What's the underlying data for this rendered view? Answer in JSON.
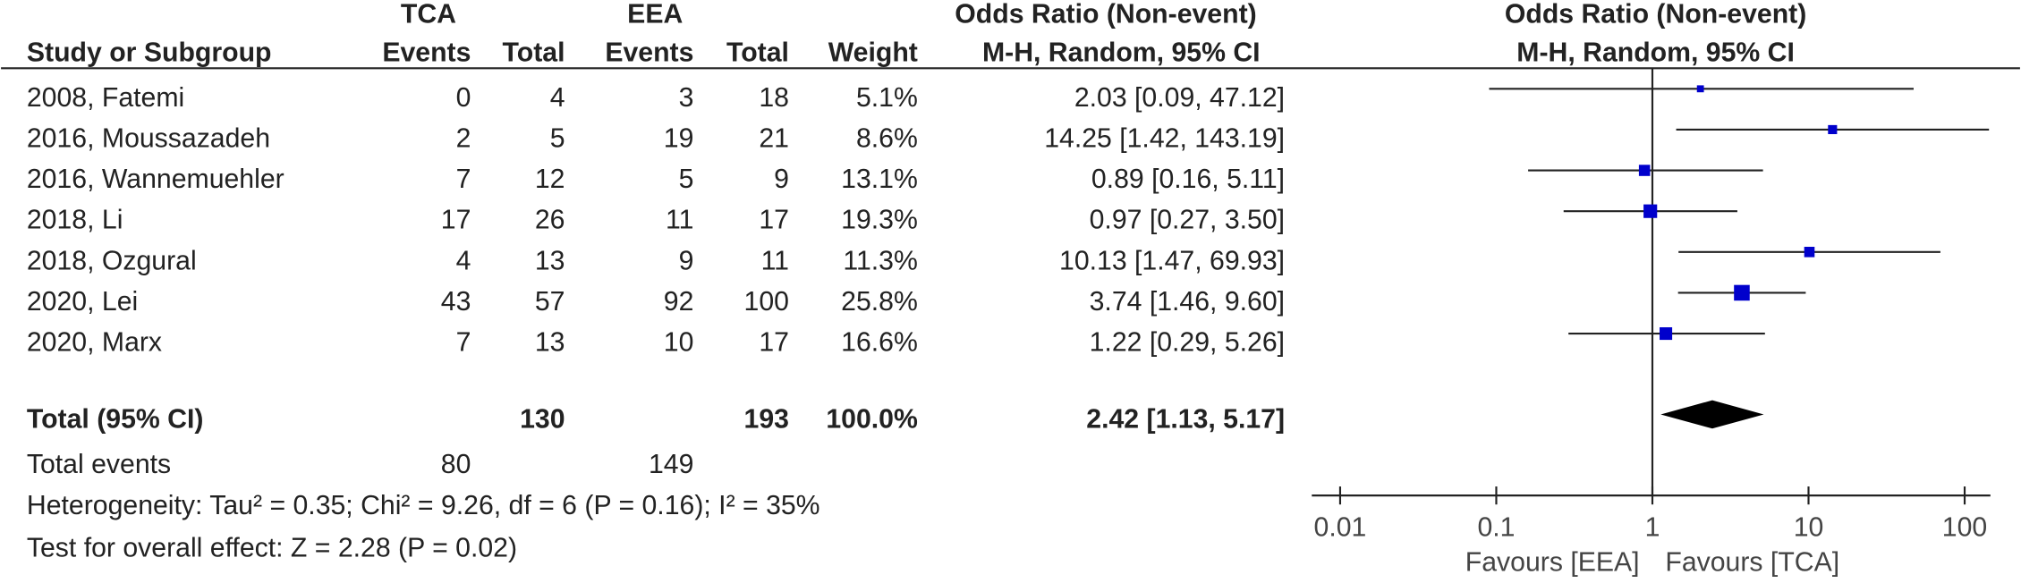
{
  "header": {
    "group1": "TCA",
    "group2": "EEA",
    "or_title": "Odds Ratio (Non-event)",
    "or_subtitle": "M-H, Random, 95% CI",
    "plot_title": "Odds Ratio (Non-event)",
    "plot_subtitle": "M-H, Random, 95% CI",
    "columns": [
      "Study or Subgroup",
      "Events",
      "Total",
      "Events",
      "Total",
      "Weight"
    ]
  },
  "table": {
    "rows": [
      [
        0,
        4,
        3,
        18
      ],
      [
        2,
        5,
        19,
        21
      ],
      [
        7,
        12,
        5,
        9
      ],
      [
        17,
        26,
        11,
        17
      ],
      [
        4,
        13,
        9,
        11
      ],
      [
        43,
        57,
        92,
        100
      ],
      [
        7,
        13,
        10,
        17
      ]
    ],
    "total": {
      "label": "Total (95% CI)",
      "tca_total": 130,
      "eea_total": 193
    },
    "total_events": {
      "label": "Total events",
      "tca": 80,
      "eea": 149
    },
    "heterogeneity": "Heterogeneity: Tau² = 0.35; Chi² = 9.26, df = 6 (P = 0.16); I² = 35%",
    "overall_effect": "Test for overall effect: Z = 2.28 (P = 0.02)"
  },
  "chart_data": {
    "type": "forest",
    "categories": [
      "2008, Fatemi",
      "2016, Moussazadeh",
      "2016, Wannemuehler",
      "2018, Li",
      "2018, Ozgural",
      "2020, Lei",
      "2020, Marx"
    ],
    "values": [
      2.03,
      14.25,
      0.89,
      0.97,
      10.13,
      3.74,
      1.22
    ],
    "ci_low": [
      0.09,
      1.42,
      0.16,
      0.27,
      1.47,
      1.46,
      0.29
    ],
    "ci_high": [
      47.12,
      143.19,
      5.11,
      3.5,
      69.93,
      9.6,
      5.26
    ],
    "value_labels": [
      "2.03 [0.09, 47.12]",
      "14.25 [1.42, 143.19]",
      "0.89 [0.16, 5.11]",
      "0.97 [0.27, 3.50]",
      "10.13 [1.47, 69.93]",
      "3.74 [1.46, 9.60]",
      "1.22 [0.29, 5.26]"
    ],
    "weights": [
      5.1,
      8.6,
      13.1,
      19.3,
      11.3,
      25.8,
      16.6
    ],
    "weight_labels": [
      "5.1%",
      "8.6%",
      "13.1%",
      "19.3%",
      "11.3%",
      "25.8%",
      "16.6%"
    ],
    "pooled": {
      "value": 2.42,
      "ci_low": 1.13,
      "ci_high": 5.17,
      "value_label": "2.42 [1.13, 5.17]",
      "weight": 100,
      "weight_label": "100.0%"
    },
    "log_x": true,
    "xlim": [
      0.01,
      100
    ],
    "xticks": [
      0.01,
      0.1,
      1,
      10,
      100
    ],
    "reference": 1,
    "xlabel_left": "Favours [EEA]",
    "xlabel_right": "Favours [TCA]",
    "color": "#0000cc"
  }
}
